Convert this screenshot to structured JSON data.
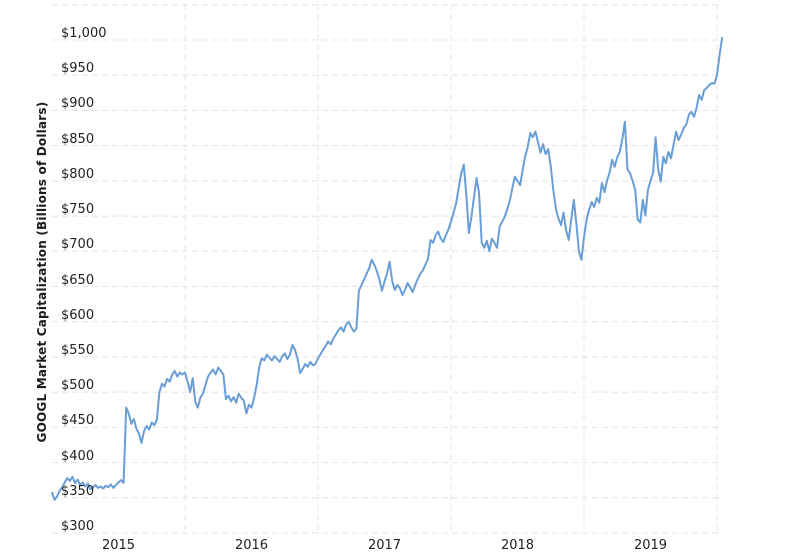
{
  "chart_data": {
    "type": "line",
    "title": "",
    "xlabel": "",
    "ylabel": "GOOGL Market Capitalization (Billions of Dollars)",
    "legend": "none",
    "grid": {
      "style": "dashed",
      "color": "#e4e4e4",
      "horizontal": true,
      "vertical": true
    },
    "xlim": [
      2015.0,
      2020.04
    ],
    "ylim": [
      300,
      1050
    ],
    "x_ticks": [
      {
        "year": 2015,
        "label": "2015"
      },
      {
        "year": 2016,
        "label": "2016"
      },
      {
        "year": 2017,
        "label": "2017"
      },
      {
        "year": 2018,
        "label": "2018"
      },
      {
        "year": 2019,
        "label": "2019"
      }
    ],
    "y_ticks": [
      {
        "value": 300,
        "label": "$300"
      },
      {
        "value": 350,
        "label": "$350"
      },
      {
        "value": 400,
        "label": "$400"
      },
      {
        "value": 450,
        "label": "$450"
      },
      {
        "value": 500,
        "label": "$500"
      },
      {
        "value": 550,
        "label": "$550"
      },
      {
        "value": 600,
        "label": "$600"
      },
      {
        "value": 650,
        "label": "$650"
      },
      {
        "value": 700,
        "label": "$700"
      },
      {
        "value": 750,
        "label": "$750"
      },
      {
        "value": 800,
        "label": "$800"
      },
      {
        "value": 850,
        "label": "$850"
      },
      {
        "value": 900,
        "label": "$900"
      },
      {
        "value": 950,
        "label": "$950"
      },
      {
        "value": 1000,
        "label": "$1,000"
      }
    ],
    "y_grid_extra": [
      1050
    ],
    "series": [
      {
        "name": "GOOGL Market Capitalization",
        "unit": "billions of dollars",
        "color": "#6a9ed6",
        "x_start": 2015.0,
        "x_step_years": 0.0192308,
        "values": [
          357,
          347,
          352,
          360,
          365,
          372,
          378,
          374,
          380,
          371,
          376,
          368,
          372,
          366,
          370,
          362,
          365,
          368,
          364,
          366,
          363,
          367,
          365,
          369,
          364,
          368,
          372,
          375,
          371,
          478,
          470,
          455,
          462,
          448,
          441,
          428,
          445,
          452,
          447,
          457,
          453,
          461,
          500,
          512,
          508,
          519,
          515,
          525,
          530,
          522,
          528,
          525,
          528,
          515,
          500,
          520,
          487,
          478,
          492,
          498,
          510,
          522,
          528,
          532,
          525,
          535,
          530,
          525,
          490,
          495,
          487,
          493,
          485,
          498,
          492,
          488,
          470,
          482,
          478,
          492,
          510,
          535,
          548,
          545,
          553,
          549,
          545,
          551,
          547,
          543,
          551,
          555,
          547,
          553,
          567,
          560,
          548,
          527,
          533,
          540,
          536,
          543,
          538,
          540,
          548,
          554,
          560,
          566,
          572,
          568,
          576,
          582,
          588,
          592,
          586,
          596,
          600,
          592,
          586,
          590,
          644,
          652,
          660,
          668,
          676,
          688,
          681,
          672,
          660,
          644,
          657,
          669,
          685,
          658,
          645,
          652,
          648,
          638,
          645,
          655,
          649,
          642,
          652,
          661,
          668,
          673,
          681,
          689,
          716,
          712,
          723,
          728,
          718,
          713,
          723,
          731,
          742,
          755,
          768,
          790,
          810,
          823,
          780,
          726,
          750,
          777,
          804,
          782,
          712,
          705,
          715,
          700,
          718,
          712,
          705,
          735,
          742,
          749,
          760,
          772,
          790,
          806,
          800,
          794,
          815,
          835,
          848,
          868,
          862,
          870,
          855,
          840,
          852,
          838,
          845,
          820,
          787,
          760,
          747,
          737,
          755,
          730,
          716,
          745,
          773,
          740,
          700,
          688,
          720,
          745,
          759,
          770,
          763,
          776,
          769,
          797,
          784,
          800,
          812,
          830,
          820,
          834,
          841,
          860,
          884,
          816,
          811,
          800,
          787,
          745,
          741,
          773,
          751,
          787,
          800,
          812,
          862,
          816,
          799,
          834,
          825,
          841,
          832,
          851,
          870,
          858,
          866,
          875,
          880,
          894,
          898,
          891,
          903,
          922,
          915,
          929,
          932,
          936,
          939,
          938,
          950,
          979,
          1003
        ]
      }
    ]
  },
  "colors": {
    "background": "#ffffff",
    "text": "#222222",
    "grid": "#e4e4e4",
    "line": "#6a9ed6"
  }
}
